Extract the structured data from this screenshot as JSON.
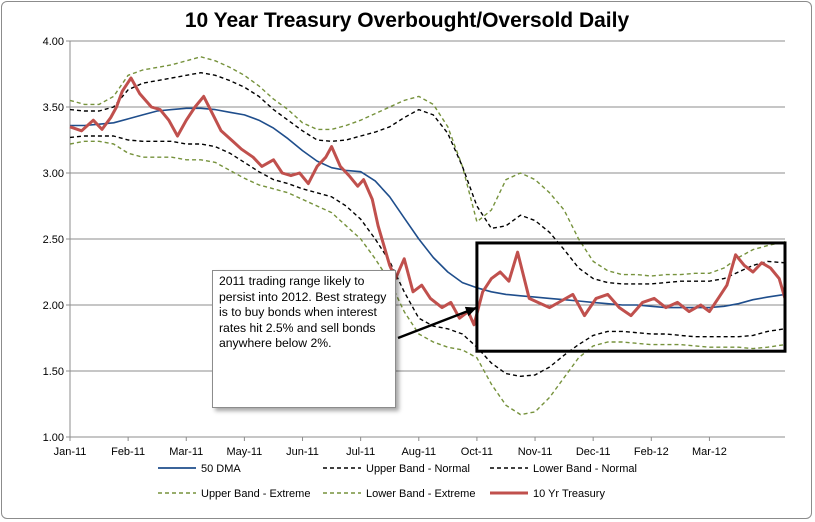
{
  "chart_data": {
    "type": "line",
    "title": "10 Year Treasury Overbought/Oversold Daily",
    "xlabel": "",
    "ylabel": "",
    "ylim": [
      1.0,
      4.0
    ],
    "yticks": [
      "1.00",
      "1.50",
      "2.00",
      "2.50",
      "3.00",
      "3.50",
      "4.00"
    ],
    "xticks": [
      "Jan-11",
      "Feb-11",
      "Mar-11",
      "May-11",
      "Jun-11",
      "Jul-11",
      "Aug-11",
      "Oct-11",
      "Nov-11",
      "Dec-11",
      "Feb-12",
      "Mar-12"
    ],
    "x_positions_months": [
      0,
      2,
      4,
      6,
      8,
      10,
      12,
      14,
      16,
      18,
      20,
      22
    ],
    "x_range_months": [
      0,
      24.6
    ],
    "series": [
      {
        "name": "10 Yr Treasury",
        "color": "#c0504d",
        "x": [
          0.0,
          0.4,
          0.8,
          1.1,
          1.4,
          1.6,
          1.8,
          2.1,
          2.4,
          2.8,
          3.1,
          3.4,
          3.7,
          4.0,
          4.3,
          4.6,
          4.9,
          5.2,
          5.6,
          5.9,
          6.3,
          6.6,
          7.0,
          7.3,
          7.6,
          7.9,
          8.2,
          8.5,
          8.8,
          9.0,
          9.3,
          9.6,
          9.9,
          10.1,
          10.4,
          10.6,
          10.8,
          11.0,
          11.2,
          11.5,
          11.8,
          12.1,
          12.4,
          12.8,
          13.1,
          13.4,
          13.7,
          13.9,
          14.2,
          14.5,
          14.8,
          15.1,
          15.4,
          15.8,
          16.1,
          16.5,
          16.9,
          17.3,
          17.7,
          18.1,
          18.5,
          18.9,
          19.3,
          19.7,
          20.1,
          20.5,
          20.9,
          21.3,
          21.7,
          22.0,
          22.3,
          22.6,
          22.9,
          23.2,
          23.5,
          23.8,
          24.1,
          24.4,
          24.6
        ],
        "values": [
          3.35,
          3.32,
          3.4,
          3.33,
          3.42,
          3.5,
          3.62,
          3.72,
          3.6,
          3.5,
          3.48,
          3.4,
          3.28,
          3.4,
          3.5,
          3.58,
          3.45,
          3.32,
          3.24,
          3.18,
          3.12,
          3.05,
          3.1,
          3.0,
          2.98,
          3.0,
          2.92,
          3.05,
          3.12,
          3.2,
          3.05,
          2.98,
          2.9,
          2.95,
          2.8,
          2.6,
          2.45,
          2.3,
          2.2,
          2.35,
          2.1,
          2.15,
          2.05,
          1.98,
          2.02,
          1.9,
          1.95,
          1.85,
          2.1,
          2.2,
          2.25,
          2.18,
          2.4,
          2.05,
          2.02,
          1.98,
          2.03,
          2.08,
          1.92,
          2.05,
          2.08,
          1.98,
          1.92,
          2.02,
          2.05,
          1.98,
          2.02,
          1.95,
          2.0,
          1.95,
          2.05,
          2.15,
          2.38,
          2.3,
          2.25,
          2.32,
          2.28,
          2.2,
          2.05
        ]
      },
      {
        "name": "50 DMA",
        "color": "#1f4e8c",
        "x": [
          0.0,
          0.5,
          1.0,
          1.5,
          2.0,
          2.5,
          3.0,
          3.5,
          4.0,
          4.5,
          5.0,
          5.5,
          6.0,
          6.5,
          7.0,
          7.5,
          8.0,
          8.5,
          9.0,
          9.5,
          10.0,
          10.5,
          11.0,
          11.5,
          12.0,
          12.5,
          13.0,
          13.5,
          14.0,
          14.5,
          15.0,
          15.5,
          16.0,
          16.5,
          17.0,
          17.5,
          18.0,
          18.5,
          19.0,
          19.5,
          20.0,
          20.5,
          21.0,
          21.5,
          22.0,
          22.5,
          23.0,
          23.5,
          24.0,
          24.6
        ],
        "values": [
          3.36,
          3.36,
          3.37,
          3.38,
          3.41,
          3.44,
          3.47,
          3.48,
          3.49,
          3.49,
          3.48,
          3.46,
          3.44,
          3.4,
          3.34,
          3.26,
          3.17,
          3.09,
          3.04,
          3.02,
          3.01,
          2.94,
          2.82,
          2.66,
          2.5,
          2.36,
          2.25,
          2.17,
          2.13,
          2.1,
          2.08,
          2.07,
          2.06,
          2.05,
          2.04,
          2.03,
          2.02,
          2.01,
          2.0,
          2.0,
          1.99,
          1.98,
          1.98,
          1.98,
          1.98,
          1.99,
          2.01,
          2.04,
          2.06,
          2.08
        ]
      },
      {
        "name": "Upper Band - Normal",
        "color": "#000000",
        "x": [
          0.0,
          0.5,
          1.0,
          1.5,
          2.0,
          2.5,
          3.0,
          3.5,
          4.0,
          4.5,
          5.0,
          5.5,
          6.0,
          6.5,
          7.0,
          7.5,
          8.0,
          8.5,
          9.0,
          9.5,
          10.0,
          10.5,
          11.0,
          11.5,
          12.0,
          12.5,
          13.0,
          13.5,
          14.0,
          14.5,
          15.0,
          15.5,
          16.0,
          16.5,
          17.0,
          17.5,
          18.0,
          18.5,
          19.0,
          19.5,
          20.0,
          20.5,
          21.0,
          21.5,
          22.0,
          22.5,
          23.0,
          23.5,
          24.0,
          24.6
        ],
        "values": [
          3.48,
          3.47,
          3.47,
          3.5,
          3.63,
          3.68,
          3.7,
          3.72,
          3.74,
          3.76,
          3.74,
          3.7,
          3.65,
          3.58,
          3.48,
          3.4,
          3.32,
          3.25,
          3.24,
          3.25,
          3.28,
          3.31,
          3.35,
          3.42,
          3.48,
          3.44,
          3.3,
          3.05,
          2.75,
          2.58,
          2.6,
          2.68,
          2.64,
          2.55,
          2.42,
          2.28,
          2.2,
          2.17,
          2.16,
          2.16,
          2.16,
          2.17,
          2.18,
          2.18,
          2.18,
          2.2,
          2.25,
          2.3,
          2.33,
          2.32
        ]
      },
      {
        "name": "Lower Band - Normal",
        "color": "#000000",
        "x": [
          0.0,
          0.5,
          1.0,
          1.5,
          2.0,
          2.5,
          3.0,
          3.5,
          4.0,
          4.5,
          5.0,
          5.5,
          6.0,
          6.5,
          7.0,
          7.5,
          8.0,
          8.5,
          9.0,
          9.5,
          10.0,
          10.5,
          11.0,
          11.5,
          12.0,
          12.5,
          13.0,
          13.5,
          14.0,
          14.5,
          15.0,
          15.5,
          16.0,
          16.5,
          17.0,
          17.5,
          18.0,
          18.5,
          19.0,
          19.5,
          20.0,
          20.5,
          21.0,
          21.5,
          22.0,
          22.5,
          23.0,
          23.5,
          24.0,
          24.6
        ],
        "values": [
          3.27,
          3.28,
          3.28,
          3.28,
          3.25,
          3.24,
          3.24,
          3.24,
          3.22,
          3.22,
          3.2,
          3.15,
          3.08,
          3.01,
          2.95,
          2.92,
          2.88,
          2.85,
          2.82,
          2.75,
          2.65,
          2.5,
          2.33,
          2.1,
          1.9,
          1.84,
          1.82,
          1.78,
          1.68,
          1.56,
          1.48,
          1.46,
          1.47,
          1.53,
          1.62,
          1.7,
          1.77,
          1.8,
          1.8,
          1.79,
          1.78,
          1.78,
          1.77,
          1.76,
          1.76,
          1.76,
          1.76,
          1.77,
          1.8,
          1.82
        ]
      },
      {
        "name": "Upper Band - Extreme",
        "color": "#76923c",
        "x": [
          0.0,
          0.5,
          1.0,
          1.5,
          2.0,
          2.5,
          3.0,
          3.5,
          4.0,
          4.5,
          5.0,
          5.5,
          6.0,
          6.5,
          7.0,
          7.5,
          8.0,
          8.5,
          9.0,
          9.5,
          10.0,
          10.5,
          11.0,
          11.5,
          12.0,
          12.5,
          13.0,
          13.5,
          14.0,
          14.5,
          15.0,
          15.5,
          16.0,
          16.5,
          17.0,
          17.5,
          18.0,
          18.5,
          19.0,
          19.5,
          20.0,
          20.5,
          21.0,
          21.5,
          22.0,
          22.5,
          23.0,
          23.5,
          24.0,
          24.6
        ],
        "values": [
          3.55,
          3.52,
          3.52,
          3.58,
          3.74,
          3.78,
          3.8,
          3.82,
          3.85,
          3.88,
          3.85,
          3.8,
          3.74,
          3.66,
          3.56,
          3.48,
          3.38,
          3.33,
          3.33,
          3.36,
          3.4,
          3.45,
          3.5,
          3.55,
          3.58,
          3.52,
          3.35,
          3.05,
          2.63,
          2.72,
          2.95,
          3.0,
          2.95,
          2.85,
          2.72,
          2.5,
          2.33,
          2.26,
          2.23,
          2.23,
          2.22,
          2.23,
          2.23,
          2.24,
          2.24,
          2.28,
          2.36,
          2.42,
          2.45,
          2.48
        ]
      },
      {
        "name": "Lower Band - Extreme",
        "color": "#76923c",
        "x": [
          0.0,
          0.5,
          1.0,
          1.5,
          2.0,
          2.5,
          3.0,
          3.5,
          4.0,
          4.5,
          5.0,
          5.5,
          6.0,
          6.5,
          7.0,
          7.5,
          8.0,
          8.5,
          9.0,
          9.5,
          10.0,
          10.5,
          11.0,
          11.5,
          12.0,
          12.5,
          13.0,
          13.5,
          14.0,
          14.5,
          15.0,
          15.5,
          16.0,
          16.5,
          17.0,
          17.5,
          18.0,
          18.5,
          19.0,
          19.5,
          20.0,
          20.5,
          21.0,
          21.5,
          22.0,
          22.5,
          23.0,
          23.5,
          24.0,
          24.6
        ],
        "values": [
          3.22,
          3.24,
          3.24,
          3.22,
          3.15,
          3.12,
          3.12,
          3.12,
          3.1,
          3.1,
          3.08,
          3.02,
          2.96,
          2.91,
          2.88,
          2.85,
          2.8,
          2.75,
          2.7,
          2.6,
          2.5,
          2.35,
          2.18,
          1.95,
          1.78,
          1.72,
          1.68,
          1.66,
          1.6,
          1.4,
          1.24,
          1.17,
          1.19,
          1.3,
          1.45,
          1.6,
          1.69,
          1.72,
          1.72,
          1.71,
          1.7,
          1.7,
          1.7,
          1.69,
          1.68,
          1.68,
          1.68,
          1.67,
          1.68,
          1.7
        ]
      }
    ],
    "highlight_box": {
      "x_range_months": [
        14.0,
        24.6
      ],
      "y_range": [
        1.65,
        2.47
      ]
    },
    "annotation": {
      "text": "2011 trading range likely to persist into 2012.  Best strategy is to buy bonds when interest rates hit 2.5% and sell bonds anywhere below 2%.",
      "arrow_to": {
        "month": 14.0,
        "value": 1.98
      }
    },
    "legend": {
      "placement": "bottom",
      "items": [
        {
          "label": "50 DMA",
          "style": "solid",
          "color": "#1f4e8c"
        },
        {
          "label": "Upper Band - Normal",
          "style": "dashed",
          "color": "#000000"
        },
        {
          "label": "Lower Band - Normal",
          "style": "dashed",
          "color": "#000000"
        },
        {
          "label": "Upper Band - Extreme",
          "style": "dashed",
          "color": "#76923c"
        },
        {
          "label": "Lower Band - Extreme",
          "style": "dashed",
          "color": "#76923c"
        },
        {
          "label": "10 Yr Treasury",
          "style": "solid-thick",
          "color": "#c0504d"
        }
      ]
    }
  }
}
